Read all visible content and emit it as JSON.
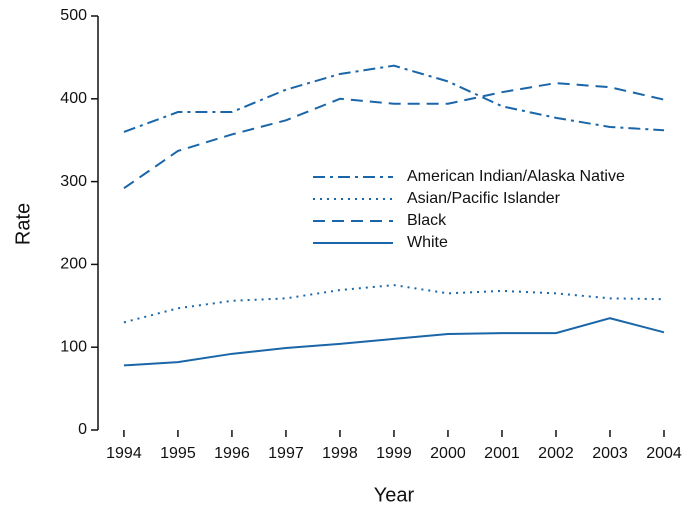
{
  "chart_data": {
    "type": "line",
    "x_label": "Year",
    "y_label": "Rate",
    "x": [
      1994,
      1995,
      1996,
      1997,
      1998,
      1999,
      2000,
      2001,
      2002,
      2003,
      2004
    ],
    "xlim": [
      1993.52,
      2004.5
    ],
    "xticks": [
      1994,
      1995,
      1996,
      1997,
      1998,
      1999,
      2000,
      2001,
      2002,
      2003,
      2004
    ],
    "ylim": [
      0,
      500
    ],
    "yticks": [
      0,
      100,
      200,
      300,
      400,
      500
    ],
    "legend": "center-right",
    "series": [
      {
        "name": "American Indian/Alaska Native",
        "color": "#1a66a8",
        "dash": "dashdot",
        "values": [
          360,
          384,
          384,
          411,
          430,
          440,
          421,
          391,
          377,
          366,
          362
        ]
      },
      {
        "name": "Asian/Pacific Islander",
        "color": "#1a66a8",
        "dash": "dotted",
        "values": [
          130,
          147,
          156,
          159,
          169,
          175,
          165,
          168,
          165,
          159,
          158
        ]
      },
      {
        "name": "Black",
        "color": "#1a66a8",
        "dash": "dashed",
        "values": [
          292,
          337,
          357,
          374,
          400,
          394,
          394,
          408,
          419,
          414,
          399
        ]
      },
      {
        "name": "White",
        "color": "#1a66a8",
        "dash": "solid",
        "values": [
          78,
          82,
          92,
          99,
          104,
          110,
          116,
          117,
          117,
          135,
          118
        ]
      }
    ]
  }
}
